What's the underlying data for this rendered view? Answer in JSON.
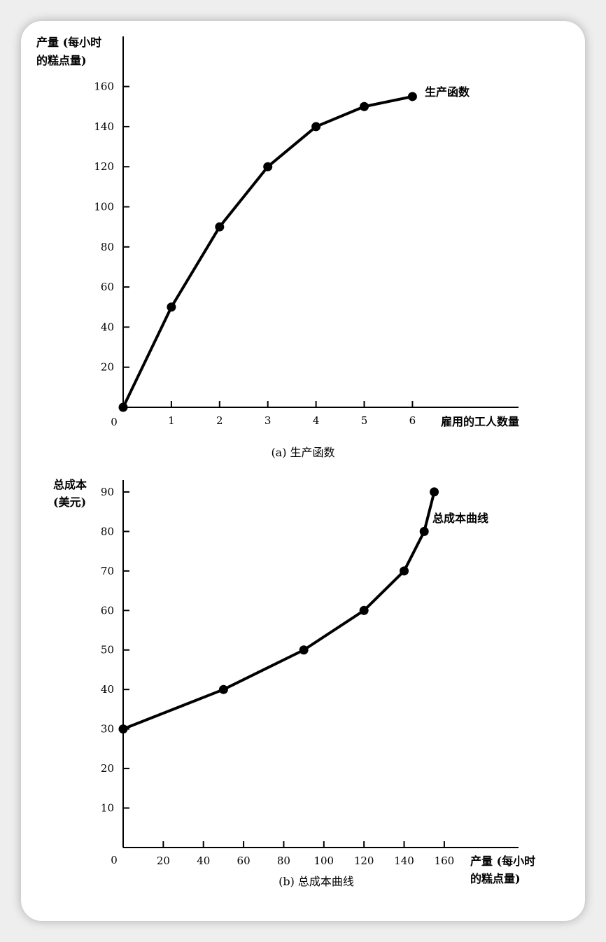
{
  "colors": {
    "background": "#eeeeee",
    "card": "#ffffff",
    "ink": "#000000"
  },
  "chart_data": [
    {
      "type": "line",
      "title": "(a) 生产函数",
      "xlabel": "雇用的工人数量",
      "ylabel": [
        "产量 (每小时",
        "的糕点量)"
      ],
      "origin_label": "0",
      "x": [
        0,
        1,
        2,
        3,
        4,
        5,
        6
      ],
      "series": [
        {
          "name": "生产函数",
          "values": [
            0,
            50,
            90,
            120,
            140,
            150,
            155
          ]
        }
      ],
      "xticks": [
        1,
        2,
        3,
        4,
        5,
        6
      ],
      "yticks": [
        20,
        40,
        60,
        80,
        100,
        120,
        140,
        160
      ],
      "xlim": [
        0,
        8.2
      ],
      "ylim": [
        0,
        185
      ],
      "grid": false
    },
    {
      "type": "line",
      "title": "(b) 总成本曲线",
      "xlabel": [
        "产量 (每小时",
        "的糕点量)"
      ],
      "ylabel": [
        "总成本",
        "(美元)"
      ],
      "origin_label": "0",
      "x": [
        0,
        50,
        90,
        120,
        140,
        150,
        155
      ],
      "series": [
        {
          "name": "总成本曲线",
          "values": [
            30,
            40,
            50,
            60,
            70,
            80,
            90
          ]
        }
      ],
      "xticks": [
        20,
        40,
        60,
        80,
        100,
        120,
        140,
        160
      ],
      "yticks": [
        10,
        20,
        30,
        40,
        50,
        60,
        70,
        80,
        90
      ],
      "xlim": [
        0,
        197
      ],
      "ylim": [
        0,
        93
      ],
      "grid": false
    }
  ]
}
